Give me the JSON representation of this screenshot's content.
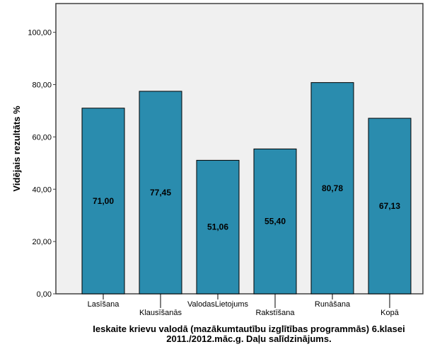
{
  "chart_data": {
    "type": "bar",
    "categories": [
      "Lasīšana",
      "Klausīšanās",
      "ValodasLietojums",
      "Rakstīšana",
      "Runāšana",
      "Kopā"
    ],
    "values": [
      71.0,
      77.45,
      51.06,
      55.4,
      80.78,
      67.13
    ],
    "value_labels": [
      "71,00",
      "77,45",
      "51,06",
      "55,40",
      "80,78",
      "67,13"
    ],
    "title_lines": [
      "Ieskaite krievu valodā (mazākumtautību izglītības programmās) 6.klasei",
      "2011./2012.māc.g. Daļu salīdzinājums."
    ],
    "xlabel": "",
    "ylabel": "Vidējais rezultāts %",
    "ylim": [
      0,
      111
    ],
    "yticks": [
      0,
      20,
      40,
      60,
      80,
      100
    ],
    "ytick_labels": [
      "0,00",
      "20,00",
      "40,00",
      "60,00",
      "80,00",
      "100,00"
    ],
    "grid": false,
    "colors": {
      "bar": "#2a8cae",
      "plot_bg": "#f0f0f0",
      "axis": "#404040"
    }
  }
}
